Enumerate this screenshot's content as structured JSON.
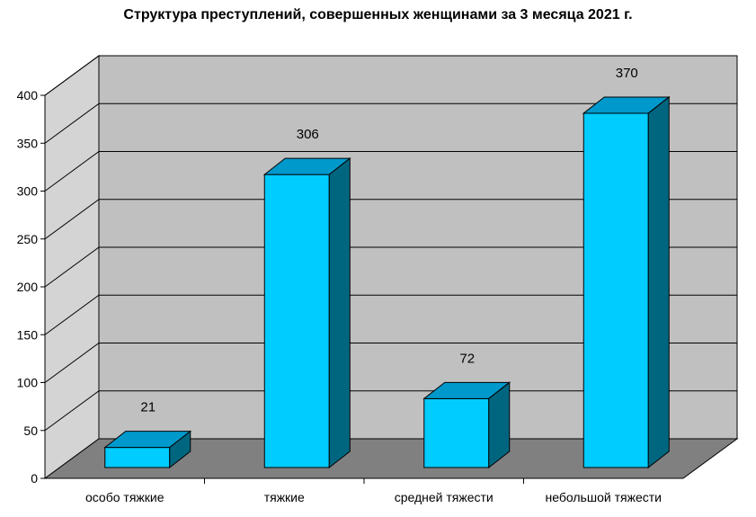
{
  "chart_data": {
    "type": "bar",
    "title": "Структура преступлений, совершенных женщинами за 3 месяца 2021 г.",
    "categories": [
      "особо тяжкие",
      "тяжкие",
      "средней тяжести",
      "небольшой тяжести"
    ],
    "values": [
      21,
      306,
      72,
      370
    ],
    "data_labels": [
      "21",
      "306",
      "72",
      "370"
    ],
    "ylim": [
      0,
      400
    ],
    "yticks": [
      "0",
      "50",
      "100",
      "150",
      "200",
      "250",
      "300",
      "350",
      "400"
    ],
    "xlabel": "",
    "ylabel": "",
    "grid": true,
    "legend": "none",
    "style": "3d-column",
    "colors": {
      "bar_front": "#00CCFF",
      "bar_top": "#0099CC",
      "bar_side": "#006680",
      "wall": "#C0C0C0",
      "side_wall": "#D4D4D4",
      "floor": "#808080",
      "grid": "#000000"
    }
  }
}
